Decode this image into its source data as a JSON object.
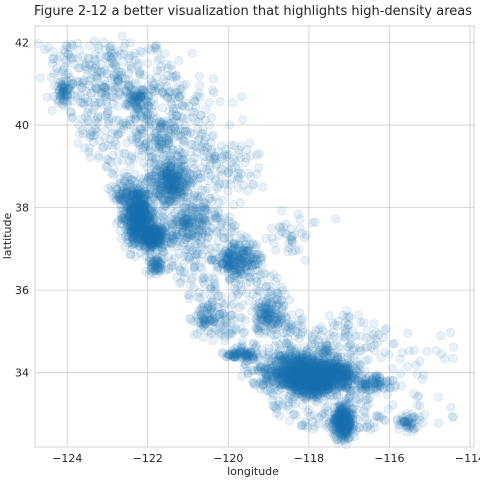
{
  "chart_data": {
    "type": "scatter",
    "title": "Figure 2-12 a better visualization that highlights high-density areas",
    "xlabel": "longitude",
    "ylabel": "lattitude",
    "xlim": [
      -124.8,
      -113.9
    ],
    "ylim": [
      32.2,
      42.4
    ],
    "xticks": [
      -124,
      -122,
      -120,
      -118,
      -116,
      -114
    ],
    "yticks": [
      34,
      36,
      38,
      40,
      42
    ],
    "xtick_labels": [
      "−124",
      "−122",
      "−120",
      "−118",
      "−116",
      "−114"
    ],
    "ytick_labels": [
      "34",
      "36",
      "38",
      "40",
      "42"
    ],
    "grid": true,
    "alpha": 0.1,
    "color": "#1f77b4",
    "density_regions": [
      {
        "x": -118.2,
        "y": 34.0,
        "sx": 0.45,
        "sy": 0.22,
        "n": 900
      },
      {
        "x": -117.9,
        "y": 33.75,
        "sx": 0.3,
        "sy": 0.15,
        "n": 400
      },
      {
        "x": -117.15,
        "y": 32.8,
        "sx": 0.12,
        "sy": 0.22,
        "n": 350
      },
      {
        "x": -122.25,
        "y": 37.7,
        "sx": 0.18,
        "sy": 0.3,
        "n": 600
      },
      {
        "x": -121.9,
        "y": 37.3,
        "sx": 0.15,
        "sy": 0.15,
        "n": 300
      },
      {
        "x": -121.4,
        "y": 38.6,
        "sx": 0.25,
        "sy": 0.25,
        "n": 300
      },
      {
        "x": -119.8,
        "y": 36.75,
        "sx": 0.25,
        "sy": 0.2,
        "n": 200
      },
      {
        "x": -117.3,
        "y": 34.0,
        "sx": 0.25,
        "sy": 0.15,
        "n": 250
      },
      {
        "x": -122.2,
        "y": 40.6,
        "sx": 0.15,
        "sy": 0.15,
        "n": 80
      },
      {
        "x": -124.1,
        "y": 40.8,
        "sx": 0.1,
        "sy": 0.15,
        "n": 60
      },
      {
        "x": -119.0,
        "y": 35.4,
        "sx": 0.2,
        "sy": 0.2,
        "n": 120
      },
      {
        "x": -121.0,
        "y": 37.6,
        "sx": 0.3,
        "sy": 0.3,
        "n": 150
      },
      {
        "x": -116.4,
        "y": 33.75,
        "sx": 0.25,
        "sy": 0.1,
        "n": 90
      },
      {
        "x": -119.7,
        "y": 34.42,
        "sx": 0.2,
        "sy": 0.05,
        "n": 80
      },
      {
        "x": -120.5,
        "y": 35.3,
        "sx": 0.2,
        "sy": 0.2,
        "n": 80
      },
      {
        "x": -121.8,
        "y": 36.6,
        "sx": 0.1,
        "sy": 0.1,
        "n": 60
      },
      {
        "x": -122.4,
        "y": 38.3,
        "sx": 0.25,
        "sy": 0.2,
        "n": 120
      },
      {
        "x": -121.7,
        "y": 39.7,
        "sx": 0.3,
        "sy": 0.3,
        "n": 100
      },
      {
        "x": -120.0,
        "y": 39.0,
        "sx": 0.4,
        "sy": 0.4,
        "n": 80
      },
      {
        "x": -118.5,
        "y": 37.4,
        "sx": 0.4,
        "sy": 0.4,
        "n": 40
      },
      {
        "x": -115.5,
        "y": 32.8,
        "sx": 0.15,
        "sy": 0.1,
        "n": 50
      },
      {
        "x": -117.0,
        "y": 34.8,
        "sx": 0.5,
        "sy": 0.3,
        "n": 100
      },
      {
        "x": -123.0,
        "y": 41.0,
        "sx": 0.6,
        "sy": 0.6,
        "n": 120
      },
      {
        "x": -121.0,
        "y": 40.5,
        "sx": 0.6,
        "sy": 0.6,
        "n": 60
      }
    ]
  }
}
